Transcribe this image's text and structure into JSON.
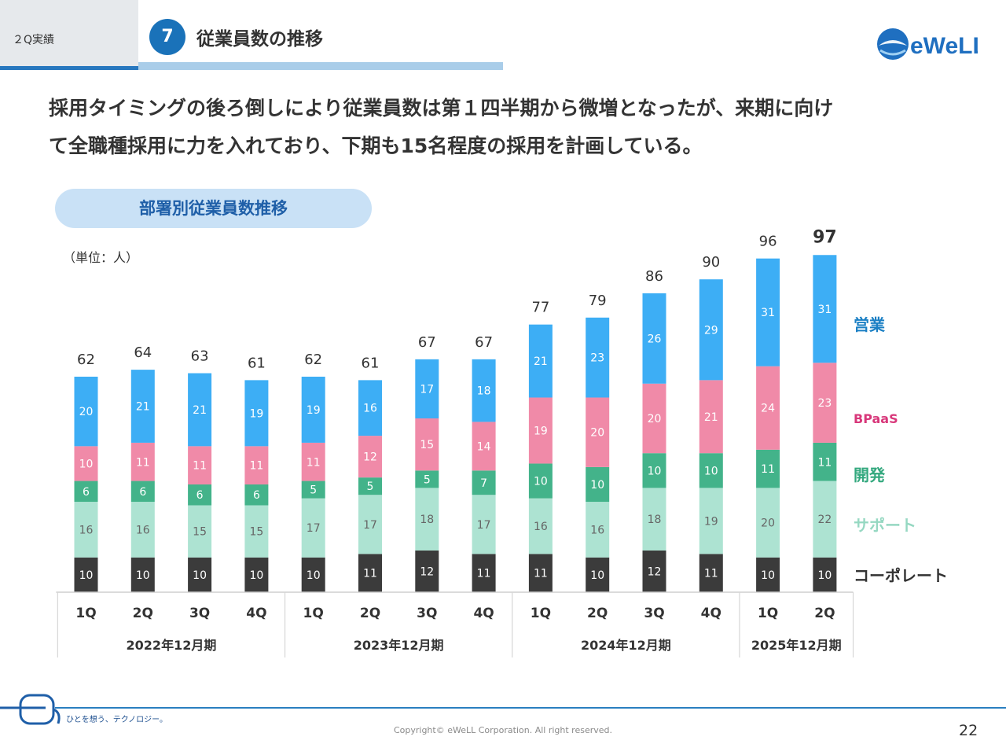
{
  "header": {
    "section_label": "２Q実績",
    "page_number_badge": "7",
    "page_title": "従業員数の推移",
    "logo_text": "eWeLL"
  },
  "lead": {
    "line1": "採用タイミングの後ろ倒しにより従業員数は第１四半期から微増となったが、来期に向け",
    "line2": "て全職種採用に力を入れており、下期も15名程度の採用を計画している。"
  },
  "chart_section": {
    "title": "部署別従業員数推移",
    "unit": "（単位：人）"
  },
  "chart_data": {
    "type": "bar",
    "stacked": true,
    "title": "部署別従業員数推移",
    "unit": "（単位：人）",
    "categories": [
      "1Q",
      "2Q",
      "3Q",
      "4Q",
      "1Q",
      "2Q",
      "3Q",
      "4Q",
      "1Q",
      "2Q",
      "3Q",
      "4Q",
      "1Q",
      "2Q"
    ],
    "groups": [
      {
        "label": "2022年12月期",
        "count": 4
      },
      {
        "label": "2023年12月期",
        "count": 4
      },
      {
        "label": "2024年12月期",
        "count": 4
      },
      {
        "label": "2025年12月期",
        "count": 2
      }
    ],
    "series": [
      {
        "name": "コーポレート",
        "color": "#3b3b3b",
        "label_color": "#ffffff",
        "legend_color": "#333333",
        "values": [
          10,
          10,
          10,
          10,
          10,
          11,
          12,
          11,
          11,
          10,
          12,
          11,
          10,
          10
        ]
      },
      {
        "name": "サポート",
        "color": "#ade3d2",
        "label_color": "#666666",
        "legend_color": "#96d8c2",
        "values": [
          16,
          16,
          15,
          15,
          17,
          17,
          18,
          17,
          16,
          16,
          18,
          19,
          20,
          22
        ]
      },
      {
        "name": "開発",
        "color": "#43b38a",
        "label_color": "#ffffff",
        "legend_color": "#33a87e",
        "values": [
          6,
          6,
          6,
          6,
          5,
          5,
          5,
          7,
          10,
          10,
          10,
          10,
          11,
          11
        ]
      },
      {
        "name": "BPaaS",
        "color": "#f08aa8",
        "label_color": "#ffffff",
        "legend_color": "#d8377a",
        "values": [
          10,
          11,
          11,
          11,
          11,
          12,
          15,
          14,
          19,
          20,
          20,
          21,
          24,
          23
        ]
      },
      {
        "name": "営業",
        "color": "#3daef5",
        "label_color": "#ffffff",
        "legend_color": "#1a7fc4",
        "values": [
          20,
          21,
          21,
          19,
          19,
          16,
          17,
          18,
          21,
          23,
          26,
          29,
          31,
          31
        ]
      }
    ],
    "totals": [
      62,
      64,
      63,
      61,
      62,
      61,
      67,
      67,
      77,
      79,
      86,
      90,
      96,
      97
    ],
    "ylim": [
      0,
      100
    ],
    "grid": false
  },
  "footer": {
    "tagline": "ひとを想う、テクノロジー。",
    "copyright": "Copyright© eWeLL Corporation. All right reserved.",
    "page_number": "22"
  }
}
